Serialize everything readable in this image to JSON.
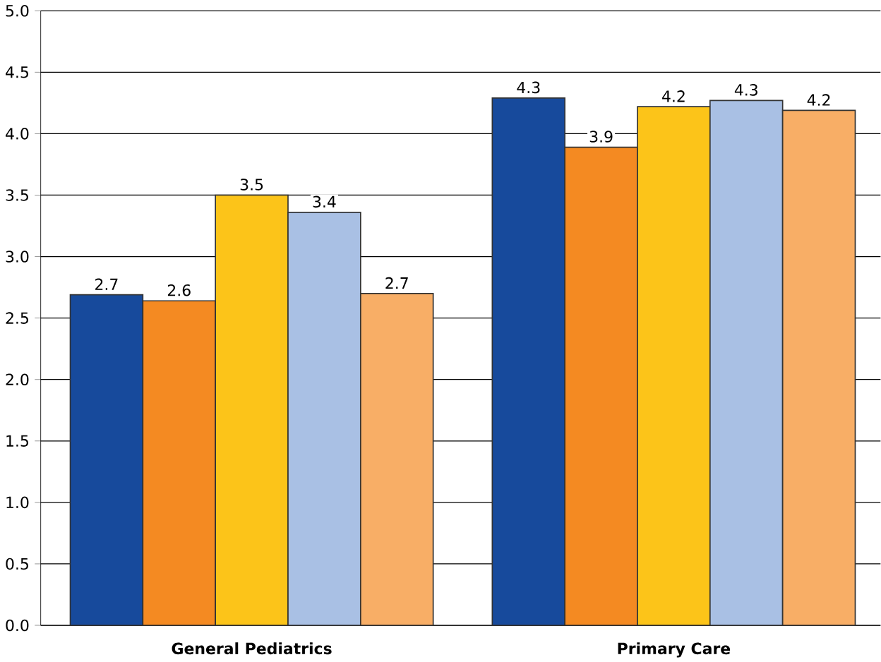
{
  "chart_data": {
    "type": "bar",
    "categories": [
      "General Pediatrics",
      "Primary Care"
    ],
    "series": [
      {
        "color": "#174a9c",
        "values": [
          2.69,
          4.29
        ],
        "value_labels": [
          "2.7",
          "4.3"
        ]
      },
      {
        "color": "#f48a22",
        "values": [
          2.64,
          3.89
        ],
        "value_labels": [
          "2.6",
          "3.9"
        ]
      },
      {
        "color": "#fcc419",
        "values": [
          3.5,
          4.22
        ],
        "value_labels": [
          "3.5",
          "4.2"
        ]
      },
      {
        "color": "#a9c0e4",
        "values": [
          3.36,
          4.27
        ],
        "value_labels": [
          "3.4",
          "4.3"
        ]
      },
      {
        "color": "#f8ae66",
        "values": [
          2.7,
          4.19
        ],
        "value_labels": [
          "2.7",
          "4.2"
        ]
      }
    ],
    "ylim": [
      0,
      5
    ],
    "yticks": [
      {
        "value": 0,
        "label": "0.0"
      },
      {
        "value": 0.5,
        "label": "0.5"
      },
      {
        "value": 1,
        "label": "1.0"
      },
      {
        "value": 1.5,
        "label": "1.5"
      },
      {
        "value": 2,
        "label": "2.0"
      },
      {
        "value": 2.5,
        "label": "2.5"
      },
      {
        "value": 3,
        "label": "3.0"
      },
      {
        "value": 3.5,
        "label": "3.5"
      },
      {
        "value": 4,
        "label": "4.0"
      },
      {
        "value": 4.5,
        "label": "4.5"
      },
      {
        "value": 5,
        "label": "5.0"
      }
    ],
    "grid": "y"
  }
}
